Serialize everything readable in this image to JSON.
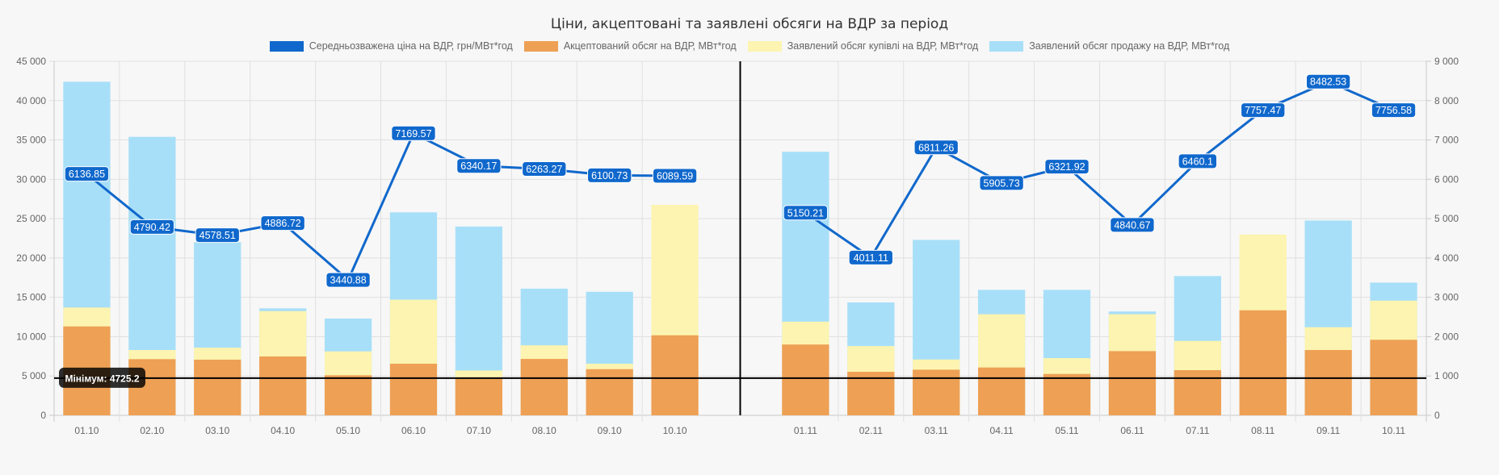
{
  "chart_data": {
    "type": "bar",
    "title": "Ціни, акцептовані та заявлені обсяги на ВДР за період",
    "categories": [
      "01.10",
      "02.10",
      "03.10",
      "04.10",
      "05.10",
      "06.10",
      "07.10",
      "08.10",
      "09.10",
      "10.10",
      "",
      "01.11",
      "02.11",
      "03.11",
      "04.11",
      "05.11",
      "06.11",
      "07.11",
      "08.11",
      "09.11",
      "10.11"
    ],
    "y_left": {
      "min": 0,
      "max": 45000,
      "step": 5000,
      "ticks": [
        "0",
        "5 000",
        "10 000",
        "15 000",
        "20 000",
        "25 000",
        "30 000",
        "35 000",
        "40 000",
        "45 000"
      ]
    },
    "y_right": {
      "min": 0,
      "max": 9000,
      "step": 1000,
      "ticks": [
        "0",
        "1 000",
        "2 000",
        "3 000",
        "4 000",
        "5 000",
        "6 000",
        "7 000",
        "8 000",
        "9 000"
      ]
    },
    "grid": true,
    "legend_position": "top",
    "series": [
      {
        "name": "Середньозважена ціна на ВДР, грн/МВт*год",
        "type": "line",
        "axis": "right",
        "color": "#1068cc",
        "values": [
          6136.85,
          4790.42,
          4578.51,
          4886.72,
          3440.88,
          7169.57,
          6340.17,
          6263.27,
          6100.73,
          6089.59,
          null,
          5150.21,
          4011.11,
          6811.26,
          5905.73,
          6321.92,
          4840.67,
          6460.1,
          7757.47,
          8482.53,
          7756.58
        ],
        "labels": [
          "6136.85",
          "4790.42",
          "4578.51",
          "4886.72",
          "3440.88",
          "7169.57",
          "6340.17",
          "6263.27",
          "6100.73",
          "6089.59",
          "",
          "5150.21",
          "4011.11",
          "6811.26",
          "5905.73",
          "6321.92",
          "4840.67",
          "6460.1",
          "7757.47",
          "8482.53",
          "7756.58"
        ]
      },
      {
        "name": "Акцептований обсяг на ВДР, МВт*год",
        "type": "bar",
        "axis": "left",
        "color": "#eea055",
        "values": [
          11300,
          7140,
          7070,
          7480,
          5090,
          6560,
          4650,
          7170,
          5870,
          10170,
          null,
          9000,
          5530,
          5800,
          6080,
          5260,
          8160,
          5740,
          13350,
          8300,
          9600
        ]
      },
      {
        "name": "Заявлений обсяг купівлі на ВДР, МВт*год",
        "type": "bar",
        "axis": "left",
        "color": "#fcf4b0",
        "values": [
          13700,
          8300,
          8600,
          13250,
          8130,
          14700,
          5700,
          8900,
          6560,
          26750,
          null,
          11900,
          8800,
          7100,
          12850,
          7270,
          12850,
          9460,
          22980,
          11200,
          14580
        ]
      },
      {
        "name": "Заявлений обсяг продажу на ВДР, МВт*год",
        "type": "bar",
        "axis": "left",
        "color": "#a8dff8",
        "values": [
          42400,
          35400,
          22000,
          13600,
          12300,
          25800,
          24000,
          16100,
          15700,
          0,
          null,
          33500,
          14350,
          22300,
          15950,
          15950,
          13200,
          17700,
          0,
          24760,
          16870
        ]
      }
    ],
    "annotations": {
      "minimum_line": {
        "value": 4725.2,
        "axis": "left",
        "label": "Мінімум: 4725.2",
        "color": "#000000"
      },
      "divider_after": "10.10"
    }
  }
}
